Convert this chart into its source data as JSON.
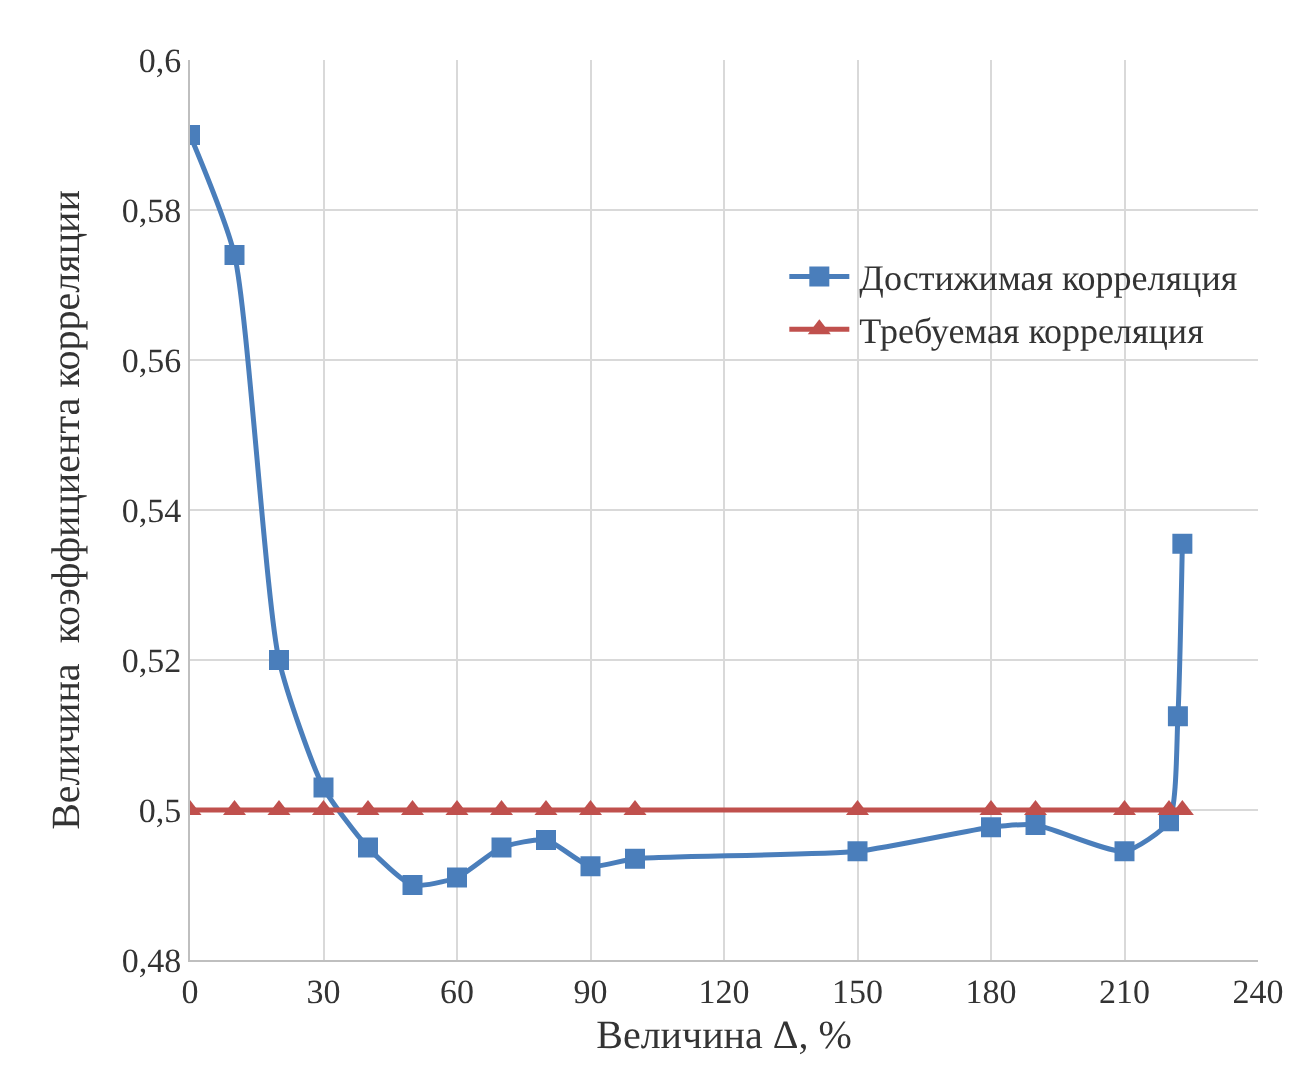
{
  "chart_data": {
    "type": "line",
    "xlabel": "Величина Δ, %",
    "ylabel": "Величина  коэффициента корреляции",
    "xlim": [
      0,
      240
    ],
    "xticks": [
      0,
      30,
      60,
      90,
      120,
      150,
      180,
      210,
      240
    ],
    "ylim": [
      0.48,
      0.6
    ],
    "yticks": [
      {
        "value": 0.48,
        "label": "0,48"
      },
      {
        "value": 0.5,
        "label": "0,5"
      },
      {
        "value": 0.52,
        "label": "0,52"
      },
      {
        "value": 0.54,
        "label": "0,54"
      },
      {
        "value": 0.56,
        "label": "0,56"
      },
      {
        "value": 0.58,
        "label": "0,58"
      },
      {
        "value": 0.6,
        "label": "0,6"
      }
    ],
    "grid": true,
    "legend": "top right",
    "series": [
      {
        "name": "Достижимая корреляция",
        "color": "#4a7ebb",
        "marker": "square",
        "x": [
          0,
          10,
          20,
          30,
          40,
          50,
          60,
          70,
          80,
          90,
          100,
          150,
          180,
          190,
          210,
          220,
          222,
          223
        ],
        "values": [
          0.59,
          0.574,
          0.52,
          0.503,
          0.495,
          0.49,
          0.491,
          0.495,
          0.496,
          0.4925,
          0.4935,
          0.4945,
          0.4977,
          0.498,
          0.4945,
          0.4985,
          0.5125,
          0.5355
        ]
      },
      {
        "name": "Требуемая корреляция",
        "color": "#c0504d",
        "marker": "triangle",
        "x": [
          0,
          10,
          20,
          30,
          40,
          50,
          60,
          70,
          80,
          90,
          100,
          150,
          180,
          190,
          210,
          220,
          223
        ],
        "values": [
          0.5,
          0.5,
          0.5,
          0.5,
          0.5,
          0.5,
          0.5,
          0.5,
          0.5,
          0.5,
          0.5,
          0.5,
          0.5,
          0.5,
          0.5,
          0.5,
          0.5
        ]
      }
    ]
  }
}
